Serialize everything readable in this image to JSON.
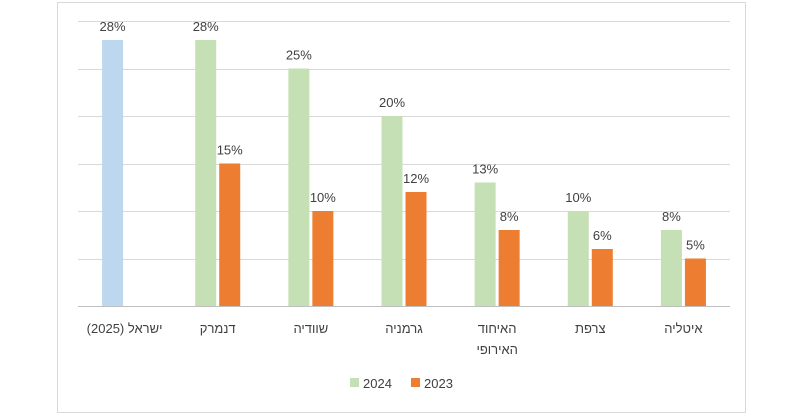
{
  "chart_data": {
    "type": "bar",
    "categories": [
      "ישראל (2025)",
      "דנמרק",
      "שוודיה",
      "גרמניה",
      "האיחוד האירופי",
      "צרפת",
      "איטליה"
    ],
    "series": [
      {
        "name": "2024",
        "color": "#c5e0b4",
        "colors": [
          "#bdd7ee",
          "#c5e0b4",
          "#c5e0b4",
          "#c5e0b4",
          "#c5e0b4",
          "#c5e0b4",
          "#c5e0b4"
        ],
        "values": [
          28,
          28,
          25,
          20,
          13,
          10,
          8
        ],
        "value_labels": [
          "28%",
          "28%",
          "25%",
          "20%",
          "13%",
          "10%",
          "8%"
        ]
      },
      {
        "name": "2023",
        "color": "#ed7d31",
        "values": [
          null,
          15,
          10,
          12,
          8,
          6,
          5
        ],
        "value_labels": [
          null,
          "15%",
          "10%",
          "12%",
          "8%",
          "6%",
          "5%"
        ]
      }
    ],
    "ylim": [
      0,
      30
    ],
    "yticks": [
      0,
      5,
      10,
      15,
      20,
      25,
      30
    ],
    "grid": true
  }
}
